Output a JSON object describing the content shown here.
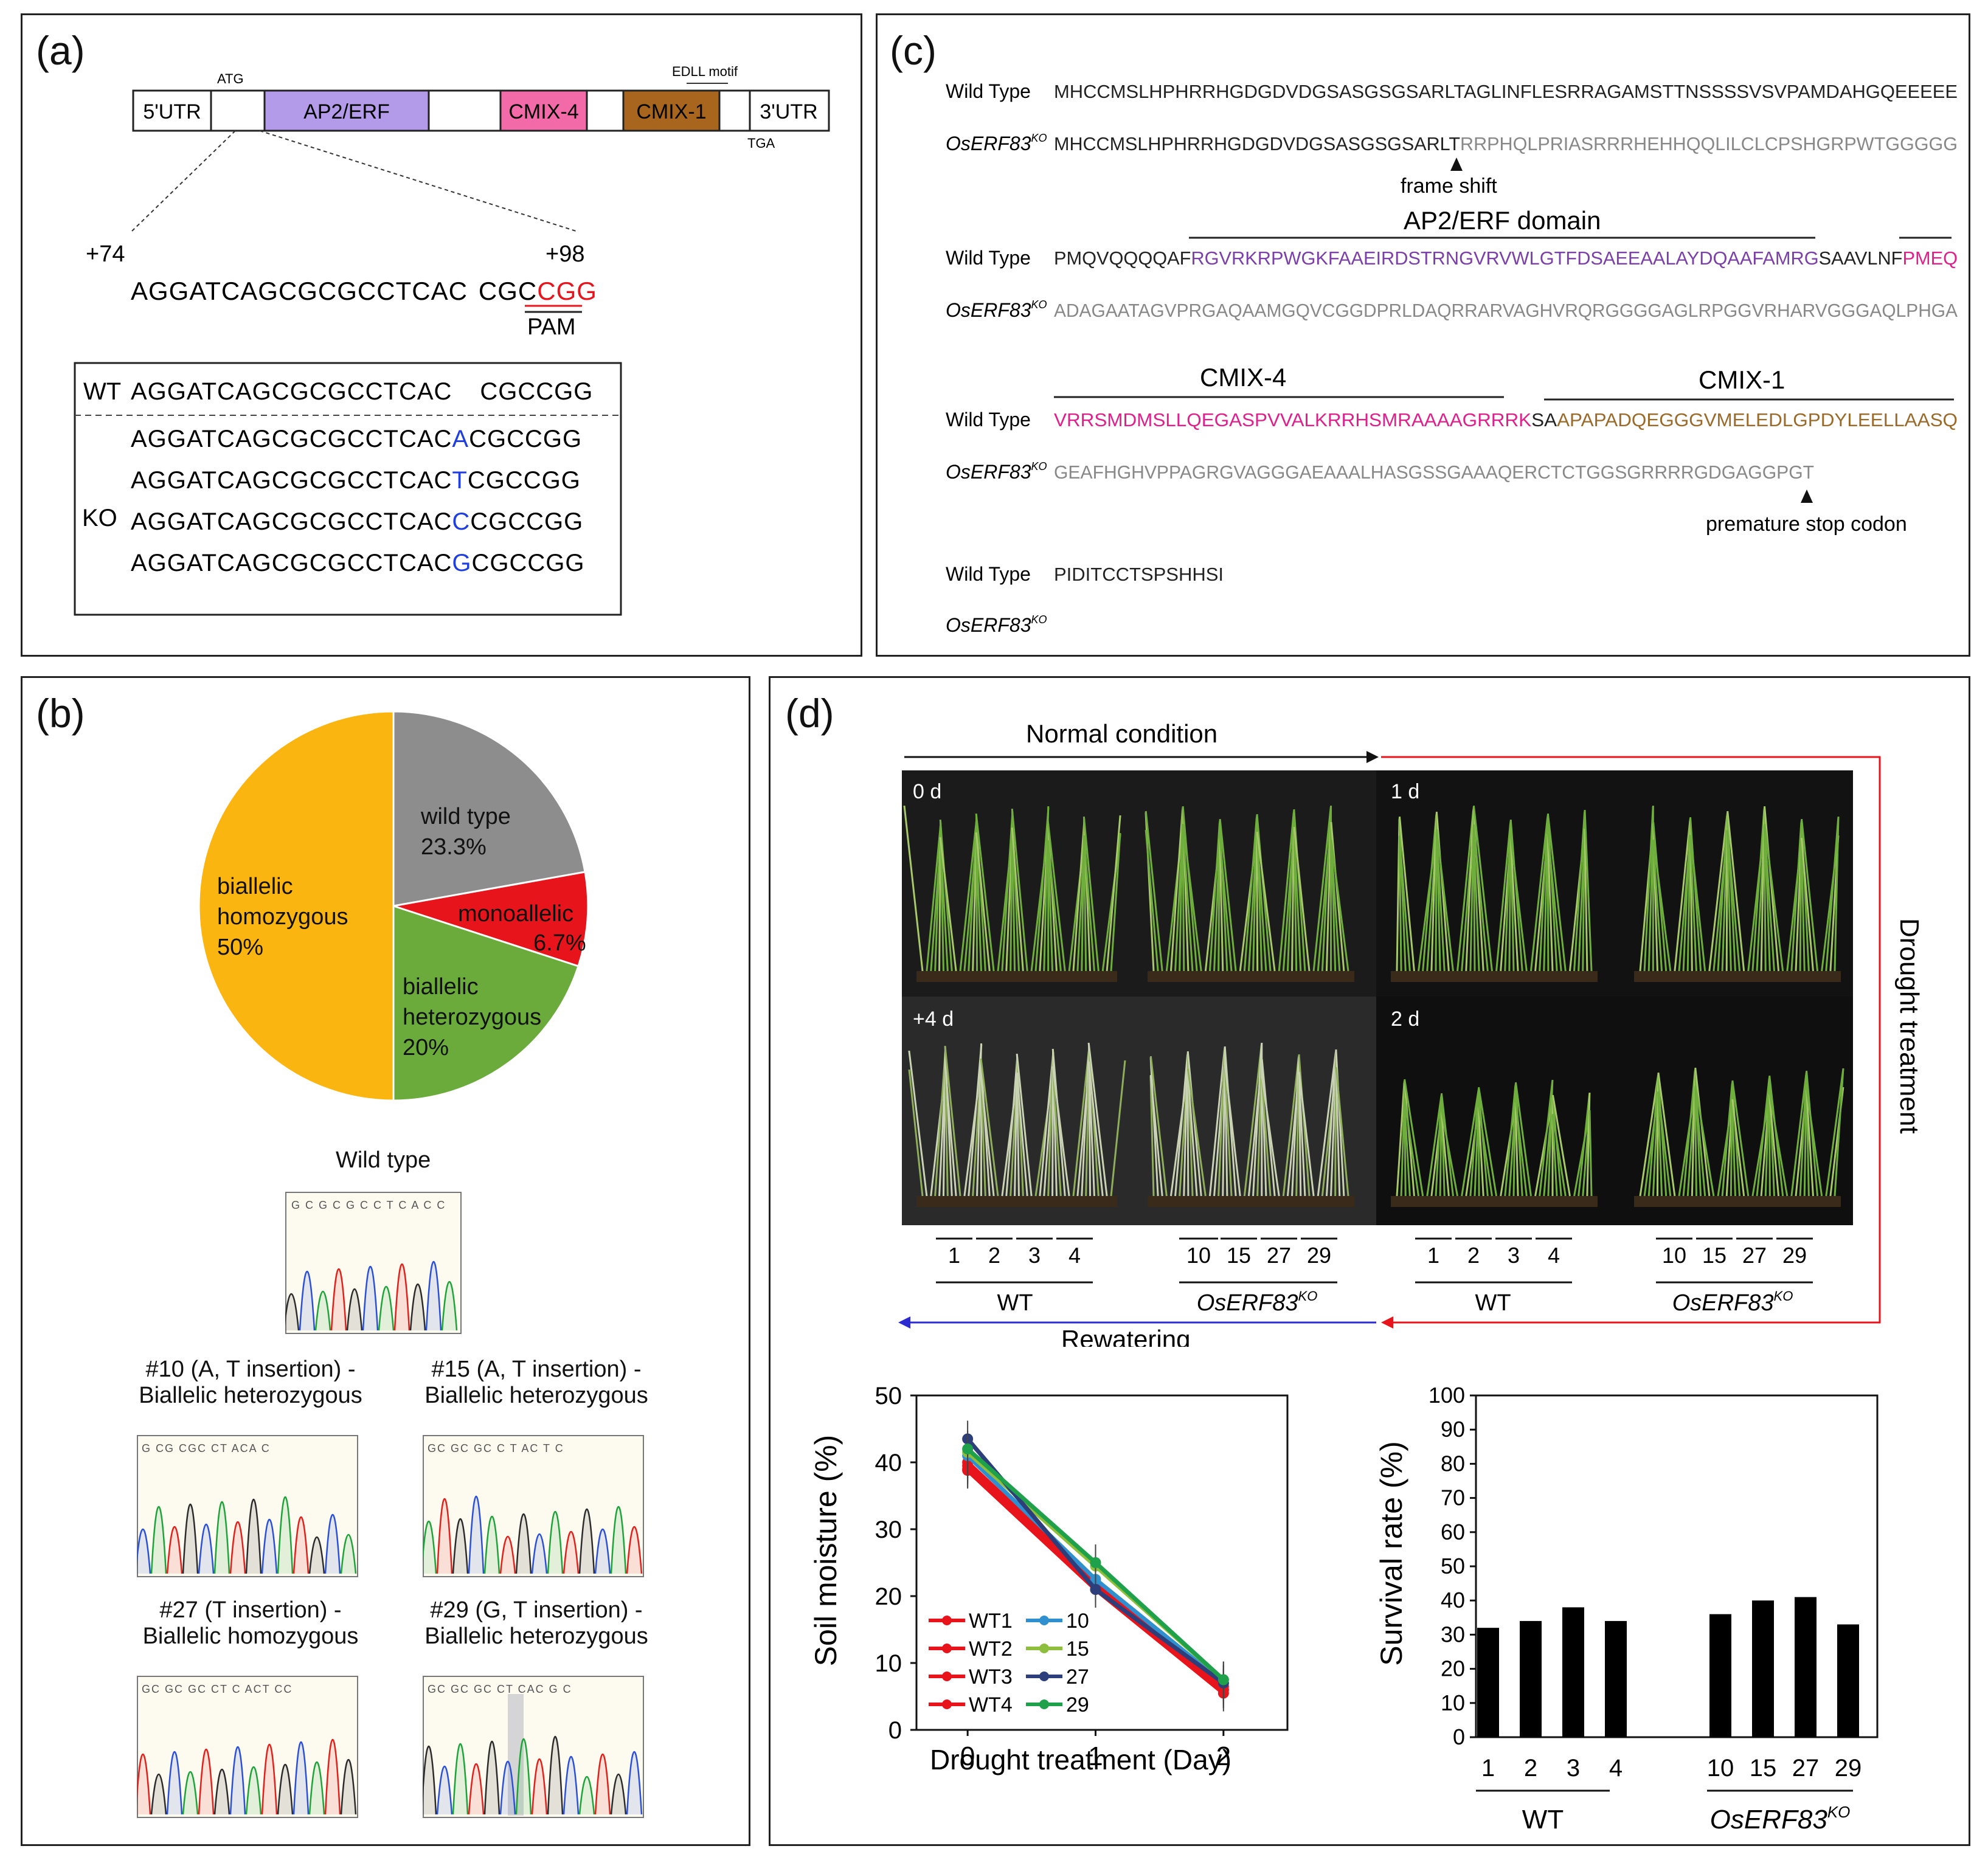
{
  "panel_a": {
    "label": "(a)",
    "gene_segments": [
      "5'UTR",
      "AP2/ERF",
      "CMIX-4",
      "CMIX-1",
      "3'UTR"
    ],
    "atg": "ATG",
    "tga": "TGA",
    "edll": "EDLL motif",
    "pos_start": "+74",
    "pos_end": "+98",
    "target_seq": "AGGATCAGCGCGCCTCAC",
    "target_tail": "CGC",
    "pam_seq": "CGG",
    "pam_label": "PAM",
    "wt_label": "WT",
    "wt_seq_a": "AGGATCAGCGCGCCTCAC",
    "wt_seq_b": "CGCCGG",
    "ko_label": "KO",
    "ko_prefix": "AGGATCAGCGCGCCTCAC",
    "ko_suffix": "CGCCGG",
    "ko_inserts": [
      "A",
      "T",
      "C",
      "G"
    ]
  },
  "panel_b": {
    "label": "(b)",
    "pie_labels": {
      "wild": [
        "wild type",
        "23.3%"
      ],
      "mono": [
        "monoallelic",
        "6.7%"
      ],
      "het": [
        "biallelic",
        "heterozygous",
        "20%"
      ],
      "hom": [
        "biallelic",
        "homozygous",
        "50%"
      ]
    },
    "wild_type_title": "Wild type",
    "chrom_wt": "G C G C G C C T C A C C",
    "clones": [
      {
        "title1": "#10 (A, T insertion) -",
        "title2": "Biallelic heterozygous",
        "seq": "G CG CGC CT ACA C"
      },
      {
        "title1": "#15 (A, T insertion) -",
        "title2": "Biallelic heterozygous",
        "seq": "GC GC GC C T AC T C"
      },
      {
        "title1": "#27 (T insertion) -",
        "title2": "Biallelic homozygous",
        "seq": "GC GC GC CT C ACT CC"
      },
      {
        "title1": "#29 (G, T insertion) -",
        "title2": "Biallelic heterozygous",
        "seq": "GC GC GC CT CAC G C"
      }
    ]
  },
  "panel_c": {
    "label": "(c)",
    "wt_label": "Wild Type",
    "ko_label": "OsERF83",
    "ko_sup": "KO",
    "row1_wt": "MHCCMSLHPHRRHGDGDVDGSASGSGSARLTAGLINFLESRRAGAMSTTNSSSSVSVPAMDAHGQEEEEE",
    "row1_ko_a": "MHCCMSLHPHRRHGDGDVDGSASGSGSARLT",
    "row1_ko_b": "RRPHQLPRIASRRRHEHHQQLILCLCPSHGRPWTGGGGG",
    "frame_shift": "frame shift",
    "ap2_domain": "AP2/ERF domain",
    "row2_wt_a": "PMQVQQQQAF",
    "row2_wt_b": "RGVRKRPWGKFAAEIRDSTRNGVRVWLGTFDSAEEAALAYDQAAFAMRG",
    "row2_wt_c": "SAAVLNF",
    "row2_wt_d": "PMEQ",
    "row2_ko": "ADAGAATAGVPRGAQAAMGQVCGGDPRLDAQRRARVAGHVRQRGGGGAGLRPGGVRHARVGGGAQLPHGA",
    "cmix4": "CMIX-4",
    "cmix1": "CMIX-1",
    "row3_wt_a": "VRRSMDMSLLQEGASPVVALKRRHSMRAAAAGRRRK",
    "row3_wt_b": "SA",
    "row3_wt_c": "APAPADQEGGGVMELEDLGPDYLEELLAASQ",
    "row3_ko": "GEAFHGHVPPAGRGVAGGGAEAAALHASGSSGAAAQERCTCTGGSGRRRRGDGAGGPGT",
    "stop_codon": "premature stop codon",
    "row4_wt": "PIDITCCTSPSHHSI"
  },
  "panel_d": {
    "label": "(d)",
    "normal": "Normal condition",
    "drought": "Drought treatment",
    "rewatering": "Rewatering",
    "photo_labels": [
      "0 d",
      "1 d",
      "+4 d",
      "2 d"
    ],
    "wt_lines": [
      "1",
      "2",
      "3",
      "4"
    ],
    "ko_lines": [
      "10",
      "15",
      "27",
      "29"
    ],
    "wt_group": "WT",
    "ko_group": "OsERF83",
    "ko_sup": "KO",
    "soil": {
      "ylabel": "Soil moisture (%)",
      "xlabel": "Drought treatment (Day)",
      "yticks": [
        "0",
        "10",
        "20",
        "30",
        "40",
        "50"
      ],
      "xticks": [
        "0",
        "1",
        "2"
      ]
    },
    "survival": {
      "ylabel": "Survival rate (%)",
      "yticks": [
        "0",
        "10",
        "20",
        "30",
        "40",
        "50",
        "60",
        "70",
        "80",
        "90",
        "100"
      ]
    }
  },
  "chart_data": [
    {
      "type": "line",
      "title": "",
      "xlabel": "Drought treatment (Day)",
      "ylabel": "Soil moisture (%)",
      "x": [
        0,
        1,
        2
      ],
      "xlim": [
        -0.4,
        2.5
      ],
      "ylim": [
        0,
        50
      ],
      "series": [
        {
          "name": "WT1",
          "values": [
            39.5,
            21.5,
            6.0
          ],
          "color": "#e8141c"
        },
        {
          "name": "WT2",
          "values": [
            38.8,
            21.0,
            5.5
          ],
          "color": "#e8141c"
        },
        {
          "name": "WT3",
          "values": [
            39.0,
            21.8,
            6.5
          ],
          "color": "#e8141c"
        },
        {
          "name": "WT4",
          "values": [
            40.0,
            22.0,
            6.0
          ],
          "color": "#e8141c"
        },
        {
          "name": "10",
          "values": [
            41.0,
            22.5,
            7.0
          ],
          "color": "#2f8fcf"
        },
        {
          "name": "15",
          "values": [
            41.5,
            24.5,
            7.5
          ],
          "color": "#8dbf3d"
        },
        {
          "name": "27",
          "values": [
            43.5,
            21.0,
            7.0
          ],
          "color": "#2c3f7a"
        },
        {
          "name": "29",
          "values": [
            42.0,
            25.0,
            7.5
          ],
          "color": "#1fa04a"
        }
      ],
      "legend": "bottom-left"
    },
    {
      "type": "bar",
      "title": "",
      "xlabel": "",
      "ylabel": "Survival rate (%)",
      "categories": [
        "1",
        "2",
        "3",
        "4",
        "10",
        "15",
        "27",
        "29"
      ],
      "values": [
        32,
        34,
        38,
        34,
        36,
        40,
        41,
        33
      ],
      "ylim": [
        0,
        100
      ]
    }
  ]
}
